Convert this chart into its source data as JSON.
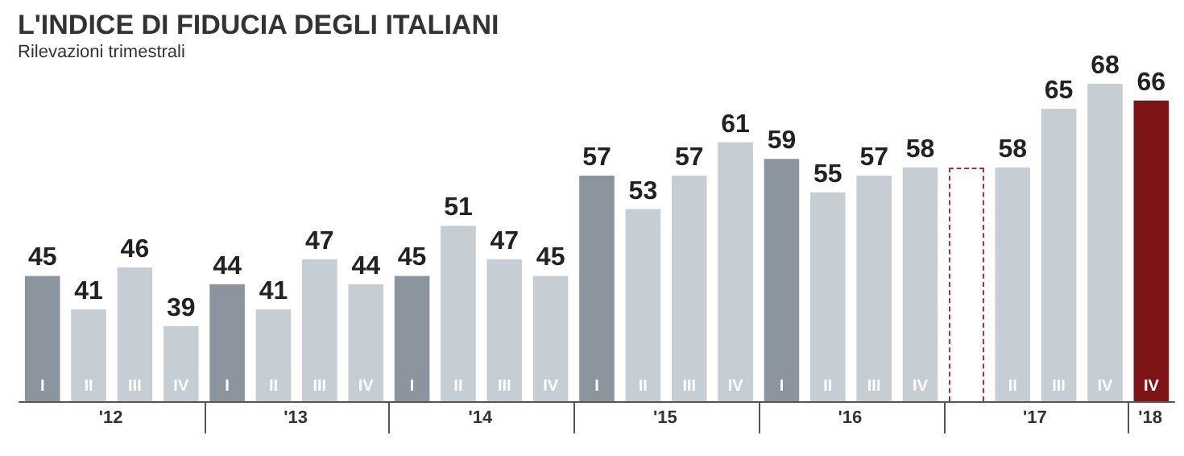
{
  "chart_data": {
    "type": "bar",
    "title": "L'INDICE DI FIDUCIA DEGLI ITALIANI",
    "subtitle": "Rilevazioni trimestrali",
    "categories": [
      "I",
      "II",
      "III",
      "IV",
      "I",
      "II",
      "III",
      "IV",
      "I",
      "II",
      "III",
      "IV",
      "I",
      "II",
      "III",
      "IV",
      "I",
      "II",
      "III",
      "IV",
      null,
      "II",
      "III",
      "IV",
      "IV"
    ],
    "values": [
      45,
      41,
      46,
      39,
      44,
      41,
      47,
      44,
      45,
      51,
      47,
      45,
      57,
      53,
      57,
      61,
      59,
      55,
      57,
      58,
      null,
      58,
      65,
      68,
      66
    ],
    "colors": [
      "#8c959d",
      "#c6cdd3",
      "#c6cdd3",
      "#c6cdd3",
      "#8c959d",
      "#c6cdd3",
      "#c6cdd3",
      "#c6cdd3",
      "#8c959d",
      "#c6cdd3",
      "#c6cdd3",
      "#c6cdd3",
      "#8c959d",
      "#c6cdd3",
      "#c6cdd3",
      "#c6cdd3",
      "#8c959d",
      "#c6cdd3",
      "#c6cdd3",
      "#c6cdd3",
      "#c6cdd3",
      "#c6cdd3",
      "#c6cdd3",
      "#c6cdd3",
      "#7e1416"
    ],
    "annotations": [
      "'12",
      "'13",
      "'14",
      "'15",
      "'16",
      "'17",
      "'18"
    ],
    "ylim": [
      30,
      68
    ],
    "tick_labels": "x",
    "data_labels": true,
    "grid": false
  }
}
